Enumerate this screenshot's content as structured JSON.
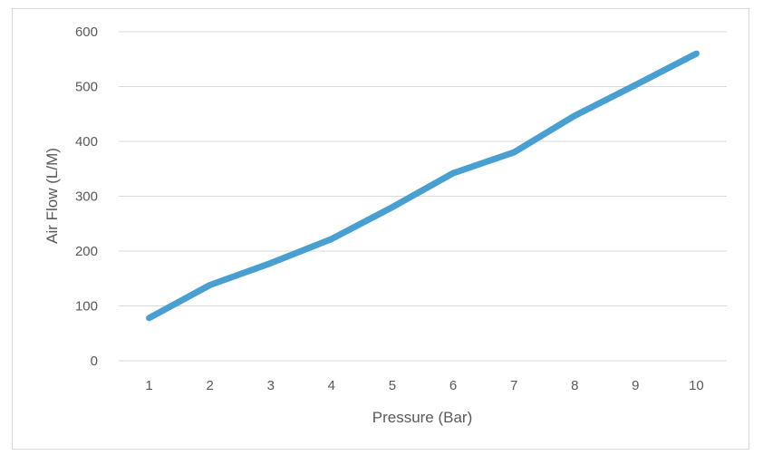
{
  "chart_data": {
    "type": "line",
    "title": "",
    "xlabel": "Pressure (Bar)",
    "ylabel": "Air Flow (L/M)",
    "categories": [
      "1",
      "2",
      "3",
      "4",
      "5",
      "6",
      "7",
      "8",
      "9",
      "10"
    ],
    "series": [
      {
        "values": [
          78,
          138,
          178,
          222,
          280,
          342,
          380,
          447,
          503,
          560
        ],
        "color": "#4a9fd1"
      }
    ],
    "yticks": [
      0,
      100,
      200,
      300,
      400,
      500,
      600
    ],
    "ylim": [
      0,
      600
    ],
    "grid": true,
    "legend": "none",
    "gridline_color": "#d9d9d9"
  }
}
